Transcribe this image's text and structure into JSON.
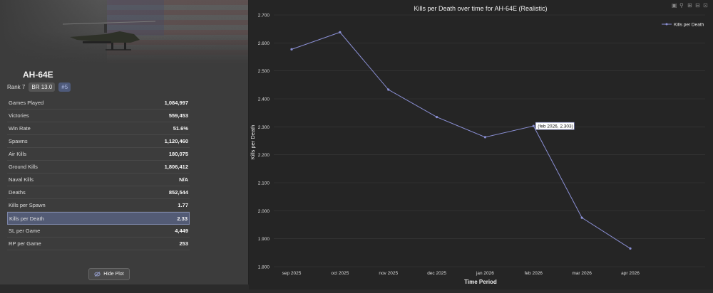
{
  "vehicle": {
    "name": "AH-64E",
    "rank": "Rank 7",
    "br": "BR 13.0",
    "position": "#5"
  },
  "stats": [
    {
      "label": "Games Played",
      "value": "1,084,997"
    },
    {
      "label": "Victories",
      "value": "559,453"
    },
    {
      "label": "Win Rate",
      "value": "51.6%"
    },
    {
      "label": "Spawns",
      "value": "1,120,460"
    },
    {
      "label": "Air Kills",
      "value": "180,075"
    },
    {
      "label": "Ground Kills",
      "value": "1,806,412"
    },
    {
      "label": "Naval Kills",
      "value": "N/A"
    },
    {
      "label": "Deaths",
      "value": "852,544"
    },
    {
      "label": "Kills per Spawn",
      "value": "1.77"
    },
    {
      "label": "Kills per Death",
      "value": "2.33"
    },
    {
      "label": "SL per Game",
      "value": "4,449"
    },
    {
      "label": "RP per Game",
      "value": "253"
    }
  ],
  "hide_plot_label": "Hide Plot",
  "toolbar_icons": [
    "camera-icon",
    "zoom-icon",
    "zoom-in-icon",
    "zoom-out-icon",
    "autoscale-icon"
  ],
  "chart_data": {
    "type": "line",
    "title": "Kills per Death over time for AH-64E (Realistic)",
    "xlabel": "Time Period",
    "ylabel": "Kills per Death",
    "categories": [
      "sep 2025",
      "oct 2025",
      "nov 2025",
      "dec 2025",
      "jan 2026",
      "feb 2026",
      "mar 2026",
      "apr 2026"
    ],
    "series": [
      {
        "name": "Kills per Death",
        "values": [
          2.577,
          2.638,
          2.433,
          2.335,
          2.263,
          2.303,
          1.975,
          1.865
        ]
      }
    ],
    "ylim": [
      1.8,
      2.7
    ],
    "yticks": [
      "1.800",
      "1.900",
      "2.000",
      "2.100",
      "2.200",
      "2.300",
      "2.400",
      "2.500",
      "2.600",
      "2.700"
    ],
    "line_color": "#8a8fd4",
    "legend_position": "top-right",
    "tooltip": "(feb 2026, 2.303)"
  }
}
